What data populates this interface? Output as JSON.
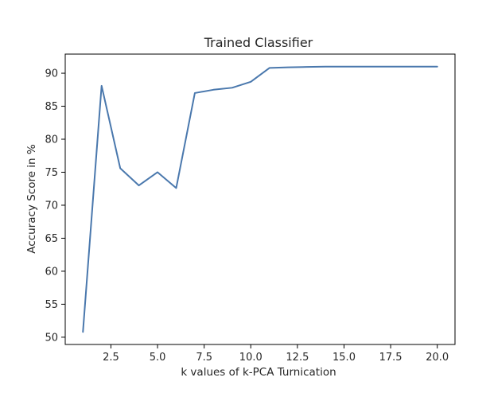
{
  "chart_data": {
    "type": "line",
    "title": "Trained Classifier",
    "xlabel": "k values of k-PCA Turnication",
    "ylabel": "Accuracy Score in %",
    "xlim": [
      0.05,
      20.95
    ],
    "ylim": [
      48.9,
      92.9
    ],
    "xticks": [
      2.5,
      5.0,
      7.5,
      10.0,
      12.5,
      15.0,
      17.5,
      20.0
    ],
    "xtick_labels": [
      "2.5",
      "5.0",
      "7.5",
      "10.0",
      "12.5",
      "15.0",
      "17.5",
      "20.0"
    ],
    "yticks": [
      50,
      55,
      60,
      65,
      70,
      75,
      80,
      85,
      90
    ],
    "ytick_labels": [
      "50",
      "55",
      "60",
      "65",
      "70",
      "75",
      "80",
      "85",
      "90"
    ],
    "grid": false,
    "series": [
      {
        "color": "#4a78ad",
        "x": [
          1,
          2,
          3,
          4,
          5,
          6,
          7,
          8,
          9,
          10,
          11,
          12,
          13,
          14,
          15,
          16,
          17,
          18,
          19,
          20
        ],
        "y": [
          50.8,
          88.1,
          75.6,
          73.0,
          75.0,
          72.6,
          87.0,
          87.5,
          87.8,
          88.7,
          90.8,
          90.9,
          90.95,
          91.0,
          91.0,
          91.0,
          91.0,
          91.0,
          91.0,
          91.0
        ]
      }
    ]
  }
}
